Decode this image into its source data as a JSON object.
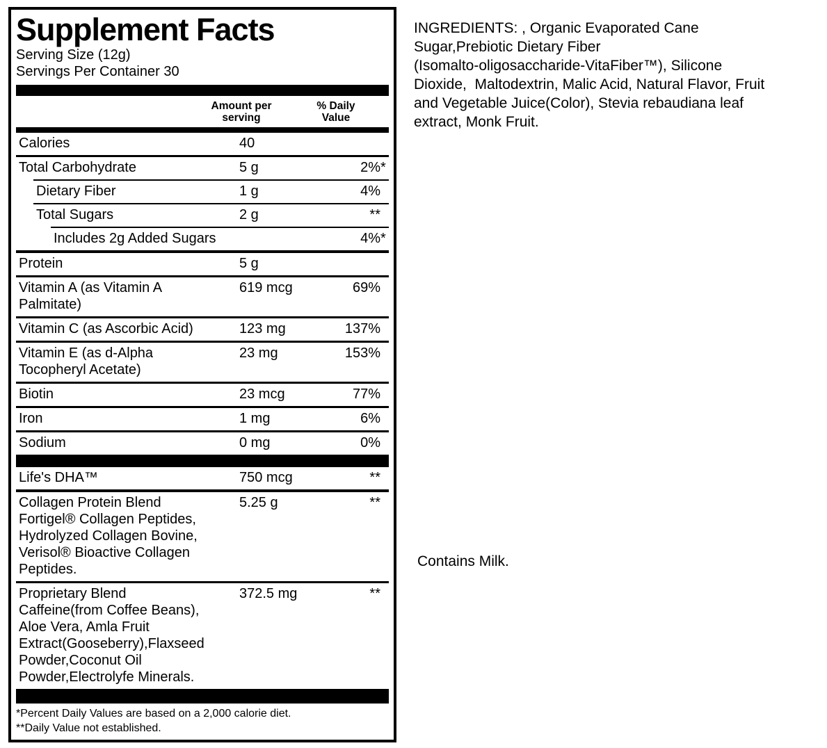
{
  "supplement_facts": {
    "title": "Supplement Facts",
    "serving_size": "Serving Size (12g)",
    "servings_per_container": "Servings Per Container 30",
    "columns": {
      "amount_header_lines": [
        "Amount per",
        "serving"
      ],
      "dv_header_lines": [
        "% Daily",
        "Value"
      ]
    },
    "rows": [
      {
        "type": "item",
        "name_lines": [
          "Calories"
        ],
        "amount": "40",
        "dv": "",
        "dv_star": "",
        "indent": 0,
        "rule": "none"
      },
      {
        "type": "item",
        "name_lines": [
          "Total Carbohydrate"
        ],
        "amount": "5 g",
        "dv": "2%",
        "dv_star": "*",
        "indent": 0,
        "rule": "mid"
      },
      {
        "type": "item",
        "name_lines": [
          "Dietary Fiber"
        ],
        "amount": "1 g",
        "dv": "4%",
        "dv_star": "",
        "indent": 1,
        "rule": "thin"
      },
      {
        "type": "item",
        "name_lines": [
          "Total Sugars"
        ],
        "amount": "2 g",
        "dv": "**",
        "dv_star": "",
        "indent": 1,
        "rule": "thin"
      },
      {
        "type": "item",
        "name_lines": [
          "Includes 2g Added Sugars"
        ],
        "amount": "",
        "dv": "4%",
        "dv_star": "*",
        "indent": 2,
        "rule": "thin"
      },
      {
        "type": "item",
        "name_lines": [
          "Protein"
        ],
        "amount": "5 g",
        "dv": "",
        "dv_star": "",
        "indent": 0,
        "rule": "thick"
      },
      {
        "type": "item",
        "name_lines": [
          "Vitamin A (as Vitamin A",
          "Palmitate)"
        ],
        "amount": "619 mcg",
        "dv": "69%",
        "dv_star": "",
        "indent": 0,
        "rule": "mid"
      },
      {
        "type": "item",
        "name_lines": [
          "Vitamin C (as Ascorbic Acid)"
        ],
        "amount": "123 mg",
        "dv": "137%",
        "dv_star": "",
        "indent": 0,
        "rule": "mid"
      },
      {
        "type": "item",
        "name_lines": [
          "Vitamin E (as d-Alpha",
          "Tocopheryl Acetate)"
        ],
        "amount": "23 mg",
        "dv": "153%",
        "dv_star": "",
        "indent": 0,
        "rule": "mid"
      },
      {
        "type": "item",
        "name_lines": [
          "Biotin"
        ],
        "amount": "23 mcg",
        "dv": "77%",
        "dv_star": "",
        "indent": 0,
        "rule": "mid"
      },
      {
        "type": "item",
        "name_lines": [
          "Iron"
        ],
        "amount": "1 mg",
        "dv": "6%",
        "dv_star": "",
        "indent": 0,
        "rule": "mid"
      },
      {
        "type": "item",
        "name_lines": [
          "Sodium"
        ],
        "amount": "0 mg",
        "dv": "0%",
        "dv_star": "",
        "indent": 0,
        "rule": "mid"
      },
      {
        "type": "bar",
        "height": 18
      },
      {
        "type": "item",
        "name_lines": [
          "Life's DHA™"
        ],
        "amount": "750 mcg",
        "dv": "**",
        "dv_star": "",
        "indent": 0,
        "rule": "none"
      },
      {
        "type": "item",
        "name_lines": [
          "Collagen Protein Blend",
          "Fortigel® Collagen Peptides,",
          "Hydrolyzed Collagen Bovine,",
          "Verisol® Bioactive Collagen",
          "Peptides."
        ],
        "amount": "5.25 g",
        "dv": "**",
        "dv_star": "",
        "indent": 0,
        "rule": "thick"
      },
      {
        "type": "item",
        "name_lines": [
          "Proprietary Blend",
          "Caffeine(from Coffee Beans),",
          "Aloe Vera, Amla Fruit",
          "Extract(Gooseberry),Flaxseed",
          "Powder,Coconut Oil",
          "Powder,Electrolyfe Minerals."
        ],
        "amount": "372.5 mg",
        "dv": "**",
        "dv_star": "",
        "indent": 0,
        "rule": "mid"
      },
      {
        "type": "bar",
        "height": 21
      }
    ],
    "footnotes": [
      "*Percent Daily Values are based on a 2,000 calorie diet.",
      "**Daily Value not established."
    ]
  },
  "ingredients": {
    "lines": [
      "INGREDIENTS: , Organic Evaporated Cane",
      "Sugar,Prebiotic Dietary Fiber",
      "(Isomalto-oligosaccharide-VitaFiber™), Silicone",
      "Dioxide,  Maltodextrin, Malic Acid, Natural Flavor, Fruit",
      "and Vegetable Juice(Color), Stevia rebaudiana leaf",
      "extract, Monk Fruit."
    ]
  },
  "allergen_statement": "Contains Milk.",
  "colors": {
    "text": "#000000",
    "background": "#ffffff",
    "rule": "#000000"
  }
}
